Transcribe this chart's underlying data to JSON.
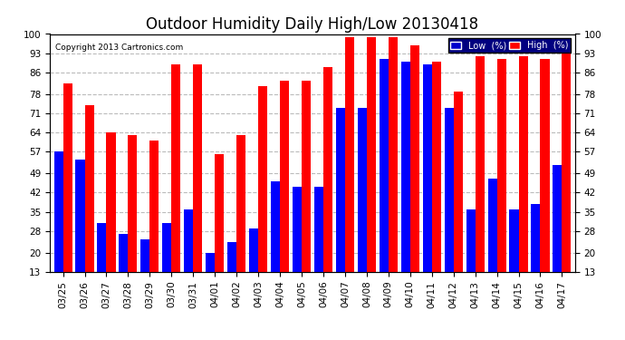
{
  "title": "Outdoor Humidity Daily High/Low 20130418",
  "copyright": "Copyright 2013 Cartronics.com",
  "dates": [
    "03/25",
    "03/26",
    "03/27",
    "03/28",
    "03/29",
    "03/30",
    "03/31",
    "04/01",
    "04/02",
    "04/03",
    "04/04",
    "04/05",
    "04/06",
    "04/07",
    "04/08",
    "04/09",
    "04/10",
    "04/11",
    "04/12",
    "04/13",
    "04/14",
    "04/15",
    "04/16",
    "04/17"
  ],
  "high": [
    82,
    74,
    64,
    63,
    61,
    89,
    89,
    56,
    63,
    81,
    83,
    83,
    88,
    99,
    99,
    99,
    96,
    90,
    79,
    92,
    91,
    92,
    91,
    96
  ],
  "low": [
    57,
    54,
    31,
    27,
    25,
    31,
    36,
    20,
    24,
    29,
    46,
    44,
    44,
    73,
    73,
    91,
    90,
    89,
    73,
    36,
    47,
    36,
    38,
    52
  ],
  "bg_color": "#ffffff",
  "bar_color_high": "#ff0000",
  "bar_color_low": "#0000ff",
  "ylim_min": 13,
  "ylim_max": 100,
  "yticks": [
    13,
    20,
    28,
    35,
    42,
    49,
    57,
    64,
    71,
    78,
    86,
    93,
    100
  ],
  "grid_color": "#bbbbbb",
  "title_fontsize": 12,
  "tick_fontsize": 7.5,
  "bar_width": 0.42,
  "legend_low_bg": "#0000cc",
  "legend_high_bg": "#ff0000"
}
